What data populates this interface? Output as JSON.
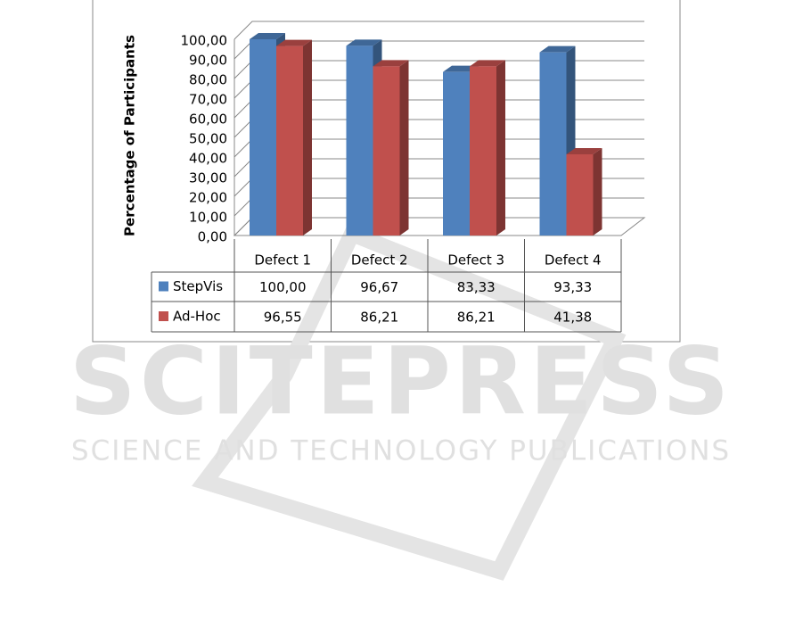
{
  "chart_data": {
    "type": "bar3d",
    "ylabel": "Percentage of Participants",
    "categories": [
      "Defect 1",
      "Defect 2",
      "Defect 3",
      "Defect 4"
    ],
    "series": [
      {
        "name": "StepVis",
        "color": "#4f81bd",
        "values": [
          100,
          96.67,
          83.33,
          93.33
        ],
        "value_labels": [
          "100,00",
          "96,67",
          "83,33",
          "93,33"
        ]
      },
      {
        "name": "Ad-Hoc",
        "color": "#c0504d",
        "values": [
          96.55,
          86.21,
          86.21,
          41.38
        ],
        "value_labels": [
          "96,55",
          "86,21",
          "86,21",
          "41,38"
        ]
      }
    ],
    "ylim": [
      0,
      100
    ],
    "yticks": [
      {
        "value": 0,
        "label": "0,00"
      },
      {
        "value": 10,
        "label": "10,00"
      },
      {
        "value": 20,
        "label": "20,00"
      },
      {
        "value": 30,
        "label": "30,00"
      },
      {
        "value": 40,
        "label": "40,00"
      },
      {
        "value": 50,
        "label": "50,00"
      },
      {
        "value": 60,
        "label": "60,00"
      },
      {
        "value": 70,
        "label": "70,00"
      },
      {
        "value": 80,
        "label": "80,00"
      },
      {
        "value": 90,
        "label": "90,00"
      },
      {
        "value": 100,
        "label": "100,00"
      }
    ],
    "grid": true
  },
  "watermark": {
    "title": "SCITEPRESS",
    "subtitle": "SCIENCE AND TECHNOLOGY PUBLICATIONS"
  }
}
